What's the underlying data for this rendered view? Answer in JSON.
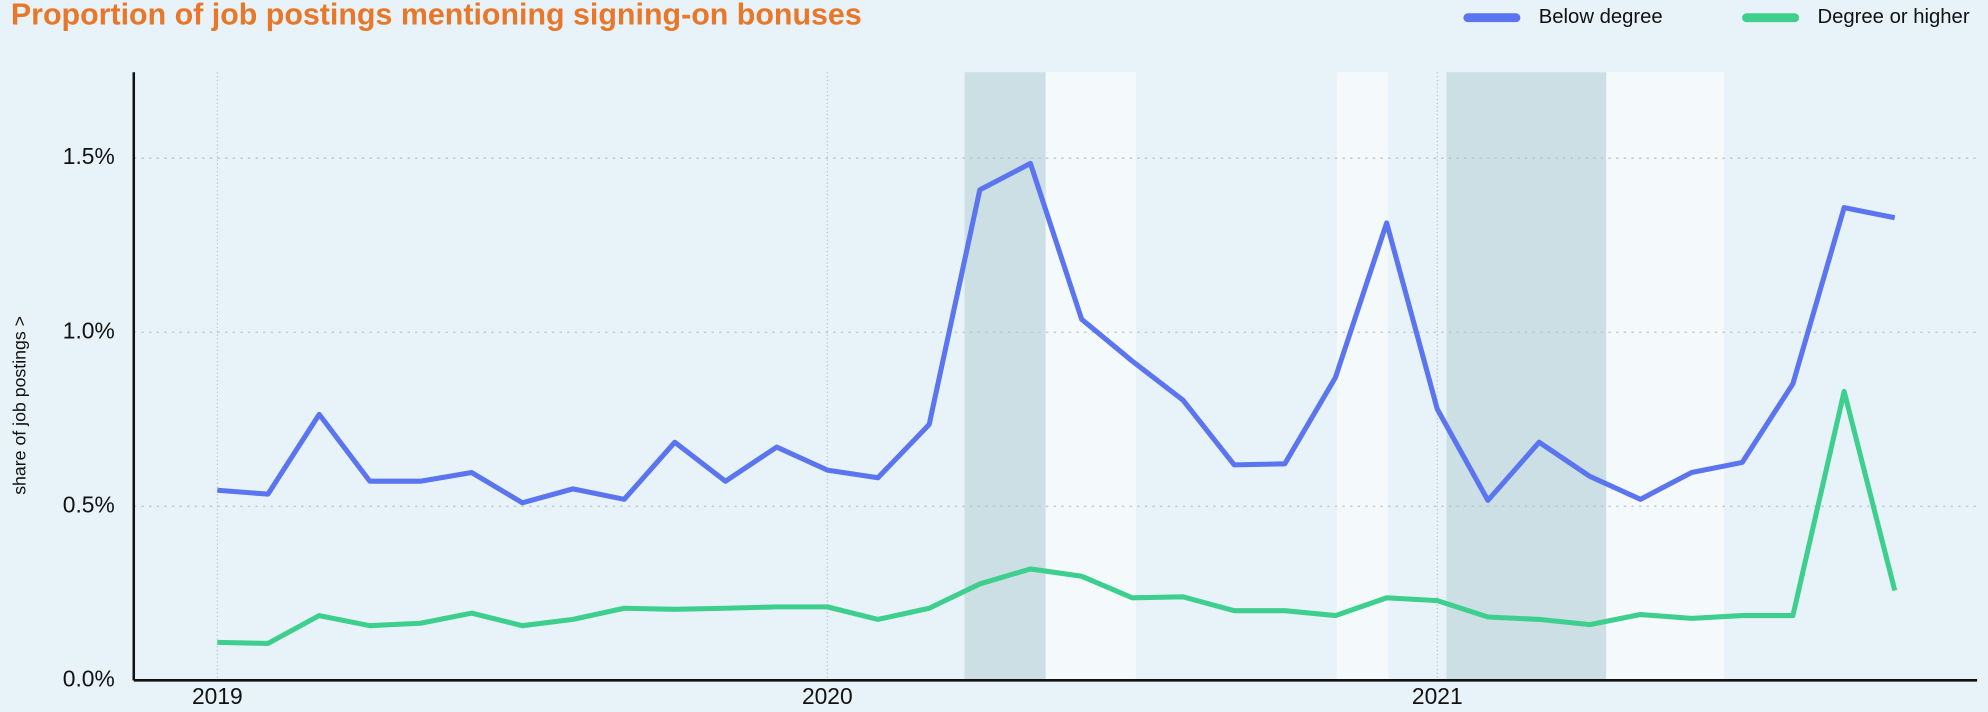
{
  "chart_data": {
    "type": "line",
    "title": "Proportion of job postings mentioning signing-on bonuses",
    "y_label": "share of job postings >",
    "x": [
      2019.0,
      2019.083,
      2019.167,
      2019.25,
      2019.333,
      2019.417,
      2019.5,
      2019.583,
      2019.667,
      2019.75,
      2019.833,
      2019.917,
      2020.0,
      2020.083,
      2020.167,
      2020.25,
      2020.333,
      2020.417,
      2020.5,
      2020.583,
      2020.667,
      2020.75,
      2020.833,
      2020.917,
      2021.0,
      2021.083,
      2021.167,
      2021.25,
      2021.333,
      2021.417,
      2021.5,
      2021.583,
      2021.667,
      2021.75
    ],
    "series": [
      {
        "name": "Below degree",
        "color": "#5b74ef",
        "values": [
          0.546,
          0.535,
          0.764,
          0.572,
          0.572,
          0.597,
          0.51,
          0.55,
          0.52,
          0.684,
          0.572,
          0.67,
          0.604,
          0.582,
          0.735,
          1.409,
          1.485,
          1.037,
          0.917,
          0.805,
          0.619,
          0.622,
          0.87,
          1.314,
          0.779,
          0.517,
          0.684,
          0.586,
          0.52,
          0.597,
          0.626,
          0.852,
          1.358,
          1.329
        ]
      },
      {
        "name": "Degree or higher",
        "color": "#3ecf8e",
        "values": [
          0.109,
          0.106,
          0.186,
          0.157,
          0.164,
          0.193,
          0.157,
          0.175,
          0.207,
          0.204,
          0.207,
          0.211,
          0.211,
          0.175,
          0.207,
          0.277,
          0.32,
          0.299,
          0.237,
          0.24,
          0.2,
          0.2,
          0.186,
          0.237,
          0.229,
          0.182,
          0.175,
          0.16,
          0.189,
          0.178,
          0.186,
          0.186,
          0.83,
          0.258
        ]
      }
    ],
    "bands": [
      {
        "range": [
          2020.225,
          2020.358
        ],
        "color": "#ccdfe5"
      },
      {
        "range": [
          2020.358,
          2020.506
        ],
        "color": "#f4f9fc"
      },
      {
        "range": [
          2020.835,
          2020.92
        ],
        "color": "#f4f9fc"
      },
      {
        "range": [
          2021.015,
          2021.277
        ],
        "color": "#ccdfe5"
      },
      {
        "range": [
          2021.277,
          2021.47
        ],
        "color": "#f4f9fc"
      }
    ],
    "xlim": [
      2018.863,
      2021.885
    ],
    "xticks": [
      2019,
      2020,
      2021
    ],
    "ylim": [
      0,
      1.747
    ],
    "yticks": [
      {
        "value": 0,
        "label": "0.0%"
      },
      {
        "value": 0.5,
        "label": "0.5%"
      },
      {
        "value": 1.0,
        "label": "1.0%"
      },
      {
        "value": 1.5,
        "label": "1.5%"
      }
    ],
    "grid": true,
    "legend": "top-right"
  }
}
